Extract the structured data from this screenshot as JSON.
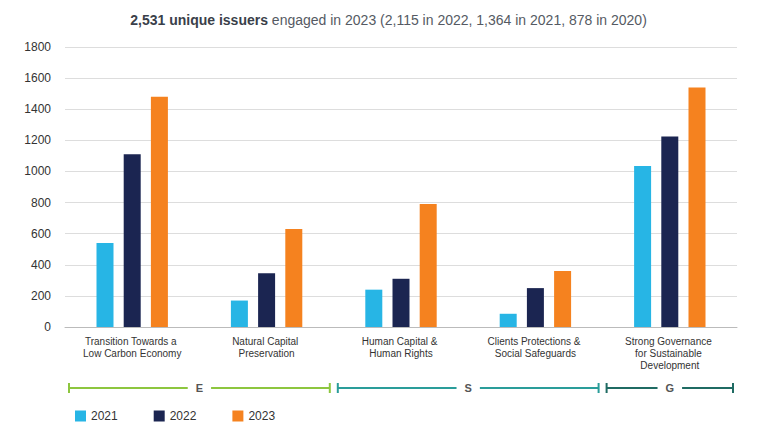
{
  "chart_data": {
    "type": "bar",
    "title": "2,531 unique issuers engaged in 2023 (2,115 in 2022, 1,364 in 2021, 878 in 2020)",
    "title_bold": "2,531 unique issuers",
    "categories": [
      "Transition Towards a Low Carbon Economy",
      "Natural Capital Preservation",
      "Human Capital & Human Rights",
      "Clients Protections & Social Safeguards",
      "Strong Governance for Sustainable Development"
    ],
    "series": [
      {
        "name": "2021",
        "color": "#27b5e5",
        "values": [
          540,
          170,
          240,
          85,
          1035
        ]
      },
      {
        "name": "2022",
        "color": "#1b2551",
        "values": [
          1110,
          345,
          310,
          250,
          1225
        ]
      },
      {
        "name": "2023",
        "color": "#f5821f",
        "values": [
          1480,
          630,
          790,
          360,
          1540
        ]
      }
    ],
    "ylim": [
      0,
      1800
    ],
    "yticks": [
      0,
      200,
      400,
      600,
      800,
      1000,
      1200,
      1400,
      1600,
      1800
    ],
    "grid": true,
    "legend": "bottom-left",
    "groups": [
      {
        "label": "E",
        "color": "#8dc63f",
        "categories": [
          "Transition Towards a Low Carbon Economy",
          "Natural Capital Preservation"
        ]
      },
      {
        "label": "S",
        "color": "#2a9d9a",
        "categories": [
          "Human Capital & Human Rights",
          "Clients Protections & Social Safeguards"
        ]
      },
      {
        "label": "G",
        "color": "#1f6b63",
        "categories": [
          "Strong Governance for Sustainable Development"
        ]
      }
    ]
  }
}
